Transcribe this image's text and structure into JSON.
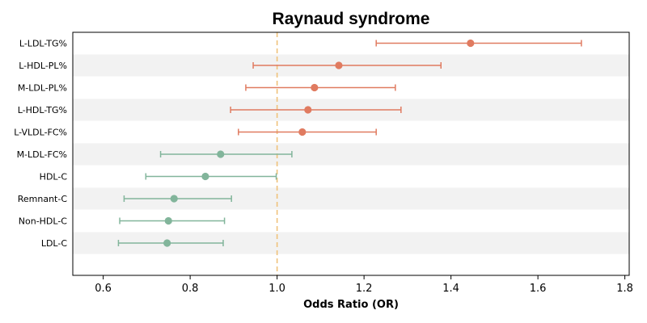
{
  "chart_data": {
    "type": "scatter",
    "subtype": "forest-plot",
    "title": "Raynaud syndrome",
    "xlabel": "Odds Ratio (OR)",
    "ylabel": "",
    "xlim": [
      0.53,
      1.81
    ],
    "xticks": [
      0.6,
      0.8,
      1.0,
      1.2,
      1.4,
      1.6,
      1.8
    ],
    "xtick_labels": [
      "0.6",
      "0.8",
      "1.0",
      "1.2",
      "1.4",
      "1.6",
      "1.8"
    ],
    "reference_line": 1.0,
    "reference_color": "#f0c27b",
    "colors": {
      "above_1": "#e07b60",
      "below_1": "#82b59b",
      "band": "#f2f2f2"
    },
    "grid": false,
    "alternating_row_bands": true,
    "rows": [
      {
        "label": "L-LDL-TG%",
        "or": 1.445,
        "ci_low": 1.228,
        "ci_high": 1.7
      },
      {
        "label": "L-HDL-PL%",
        "or": 1.142,
        "ci_low": 0.945,
        "ci_high": 1.377
      },
      {
        "label": "M-LDL-PL%",
        "or": 1.086,
        "ci_low": 0.928,
        "ci_high": 1.272
      },
      {
        "label": "L-HDL-TG%",
        "or": 1.071,
        "ci_low": 0.893,
        "ci_high": 1.285
      },
      {
        "label": "L-VLDL-FC%",
        "or": 1.058,
        "ci_low": 0.911,
        "ci_high": 1.228
      },
      {
        "label": "M-LDL-FC%",
        "or": 0.87,
        "ci_low": 0.732,
        "ci_high": 1.034
      },
      {
        "label": "HDL-C",
        "or": 0.835,
        "ci_low": 0.698,
        "ci_high": 0.998
      },
      {
        "label": "Remnant-C",
        "or": 0.763,
        "ci_low": 0.648,
        "ci_high": 0.895
      },
      {
        "label": "Non-HDL-C",
        "or": 0.75,
        "ci_low": 0.638,
        "ci_high": 0.879
      },
      {
        "label": "LDL-C",
        "or": 0.747,
        "ci_low": 0.635,
        "ci_high": 0.876
      }
    ]
  }
}
